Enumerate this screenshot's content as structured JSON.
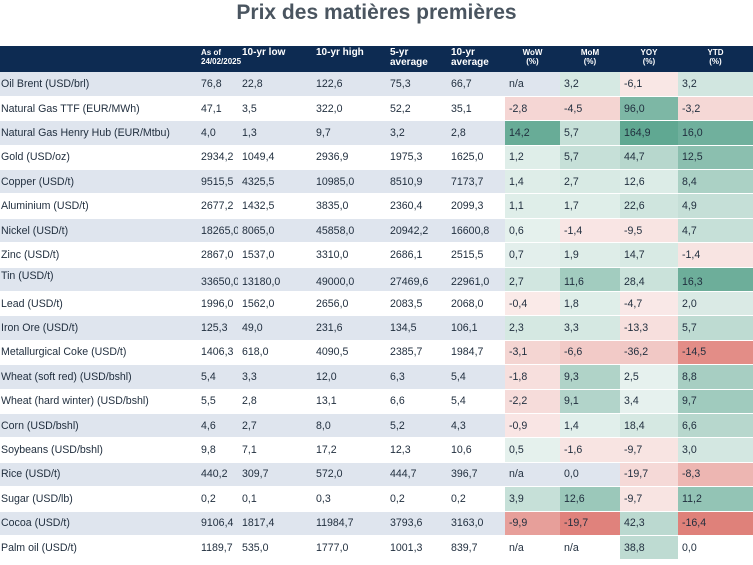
{
  "title": "Prix des matières premières",
  "headers": [
    "",
    "As of\n24/02/2025",
    "10-yr low",
    "10-yr high",
    "5-yr\naverage",
    "10-yr\naverage",
    "WoW\n(%)",
    "MoM\n(%)",
    "YOY\n(%)",
    "YTD\n(%)"
  ],
  "colors": {
    "header_bg": "#0d2b52",
    "stripe": "#dfe5ee",
    "positive_strong": "#4f9e86",
    "negative_strong": "#d9675f"
  },
  "rows": [
    {
      "name": "Oil Brent (USD/brl)",
      "asof": "76,8",
      "low": "22,8",
      "high": "122,6",
      "avg5": "75,3",
      "avg10": "66,7",
      "wow": "n/a",
      "mom": "3,2",
      "yoy": "-6,1",
      "ytd": "3,2"
    },
    {
      "name": "Natural Gas TTF (EUR/MWh)",
      "asof": "47,1",
      "low": "3,5",
      "high": "322,0",
      "avg5": "52,2",
      "avg10": "35,1",
      "wow": "-2,8",
      "mom": "-4,5",
      "yoy": "96,0",
      "ytd": "-3,2"
    },
    {
      "name": "Natural Gas Henry Hub (EUR/Mtbu)",
      "asof": "4,0",
      "low": "1,3",
      "high": "9,7",
      "avg5": "3,2",
      "avg10": "2,8",
      "wow": "14,2",
      "mom": "5,7",
      "yoy": "164,9",
      "ytd": "16,0"
    },
    {
      "name": "Gold (USD/oz)",
      "asof": "2934,2",
      "low": "1049,4",
      "high": "2936,9",
      "avg5": "1975,3",
      "avg10": "1625,0",
      "wow": "1,2",
      "mom": "5,7",
      "yoy": "44,7",
      "ytd": "12,5"
    },
    {
      "name": "Copper (USD/t)",
      "asof": "9515,5",
      "low": "4325,5",
      "high": "10985,0",
      "avg5": "8510,9",
      "avg10": "7173,7",
      "wow": "1,4",
      "mom": "2,7",
      "yoy": "12,6",
      "ytd": "8,4"
    },
    {
      "name": "Aluminium (USD/t)",
      "asof": "2677,2",
      "low": "1432,5",
      "high": "3835,0",
      "avg5": "2360,4",
      "avg10": "2099,3",
      "wow": "1,1",
      "mom": "1,7",
      "yoy": "22,6",
      "ytd": "4,9"
    },
    {
      "name": "Nickel (USD/t)",
      "asof": "18265,0",
      "low": "8065,0",
      "high": "45858,0",
      "avg5": "20942,2",
      "avg10": "16600,8",
      "wow": "0,6",
      "mom": "-1,4",
      "yoy": "-9,5",
      "ytd": "4,7"
    },
    {
      "name": "Zinc (USD/t)",
      "asof": "2867,0",
      "low": "1537,0",
      "high": "3310,0",
      "avg5": "2686,1",
      "avg10": "2515,5",
      "wow": "0,7",
      "mom": "1,9",
      "yoy": "14,7",
      "ytd": "-1,4"
    },
    {
      "name": "Tin (USD/t)",
      "asof": "33650,0",
      "low": "13180,0",
      "high": "49000,0",
      "avg5": "27469,6",
      "avg10": "22961,0",
      "wow": "2,7",
      "mom": "11,6",
      "yoy": "28,4",
      "ytd": "16,3"
    },
    {
      "name": "Lead (USD/t)",
      "asof": "1996,0",
      "low": "1562,0",
      "high": "2656,0",
      "avg5": "2083,5",
      "avg10": "2068,0",
      "wow": "-0,4",
      "mom": "1,8",
      "yoy": "-4,7",
      "ytd": "2,0"
    },
    {
      "name": "Iron Ore (USD/t)",
      "asof": "125,3",
      "low": "49,0",
      "high": "231,6",
      "avg5": "134,5",
      "avg10": "106,1",
      "wow": "2,3",
      "mom": "3,3",
      "yoy": "-13,3",
      "ytd": "5,7"
    },
    {
      "name": "Metallurgical Coke (USD/t)",
      "asof": "1406,3",
      "low": "618,0",
      "high": "4090,5",
      "avg5": "2385,7",
      "avg10": "1984,7",
      "wow": "-3,1",
      "mom": "-6,6",
      "yoy": "-36,2",
      "ytd": "-14,5"
    },
    {
      "name": "Wheat (soft red) (USD/bshl)",
      "asof": "5,4",
      "low": "3,3",
      "high": "12,0",
      "avg5": "6,3",
      "avg10": "5,4",
      "wow": "-1,8",
      "mom": "9,3",
      "yoy": "2,5",
      "ytd": "8,8"
    },
    {
      "name": "Wheat (hard winter) (USD/bshl)",
      "asof": "5,5",
      "low": "2,8",
      "high": "13,1",
      "avg5": "6,6",
      "avg10": "5,4",
      "wow": "-2,2",
      "mom": "9,1",
      "yoy": "3,4",
      "ytd": "9,7"
    },
    {
      "name": "Corn (USD/bshl)",
      "asof": "4,6",
      "low": "2,7",
      "high": "8,0",
      "avg5": "5,2",
      "avg10": "4,3",
      "wow": "-0,9",
      "mom": "1,4",
      "yoy": "18,4",
      "ytd": "6,6"
    },
    {
      "name": "Soybeans (USD/bshl)",
      "asof": "9,8",
      "low": "7,1",
      "high": "17,2",
      "avg5": "12,3",
      "avg10": "10,6",
      "wow": "0,5",
      "mom": "-1,6",
      "yoy": "-9,7",
      "ytd": "3,0"
    },
    {
      "name": "Rice (USD/t)",
      "asof": "440,2",
      "low": "309,7",
      "high": "572,0",
      "avg5": "444,7",
      "avg10": "396,7",
      "wow": "n/a",
      "mom": "0,0",
      "yoy": "-19,7",
      "ytd": "-8,3"
    },
    {
      "name": "Sugar (USD/lb)",
      "asof": "0,2",
      "low": "0,1",
      "high": "0,3",
      "avg5": "0,2",
      "avg10": "0,2",
      "wow": "3,9",
      "mom": "12,6",
      "yoy": "-9,7",
      "ytd": "11,2"
    },
    {
      "name": "Cocoa (USD/t)",
      "asof": "9106,4",
      "low": "1817,4",
      "high": "11984,7",
      "avg5": "3793,6",
      "avg10": "3163,0",
      "wow": "-9,9",
      "mom": "-19,7",
      "yoy": "42,3",
      "ytd": "-16,4"
    },
    {
      "name": "Palm oil (USD/t)",
      "asof": "1189,7",
      "low": "535,0",
      "high": "1777,0",
      "avg5": "1001,3",
      "avg10": "839,7",
      "wow": "n/a",
      "mom": "n/a",
      "yoy": "38,8",
      "ytd": "0,0"
    }
  ]
}
